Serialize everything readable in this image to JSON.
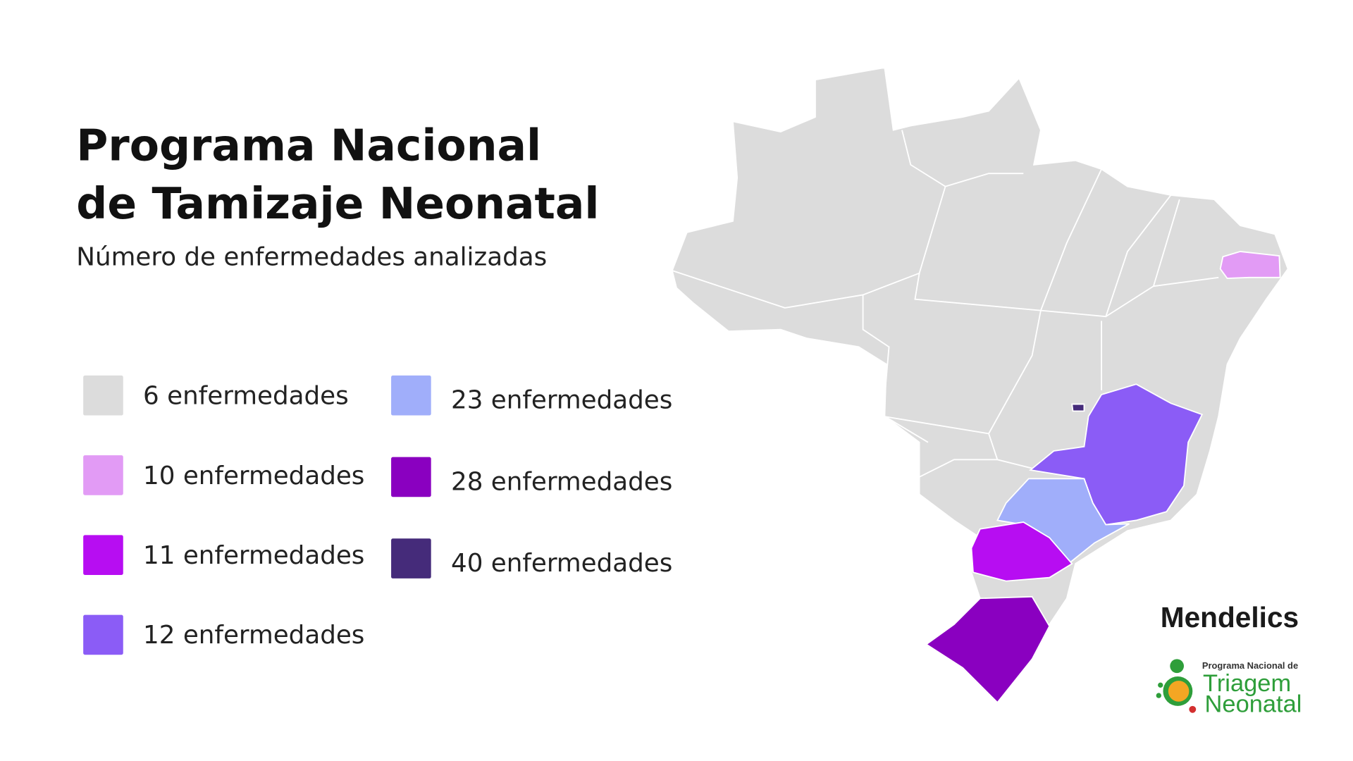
{
  "header": {
    "title_lines": [
      "Programa Nacional",
      "de Tamizaje Neonatal"
    ],
    "subtitle": "Número de enfermedades analizadas"
  },
  "legend": [
    {
      "label": "6 enfermedades",
      "color": "#dcdcdc"
    },
    {
      "label": "10 enfermedades",
      "color": "#e29bf5"
    },
    {
      "label": "11 enfermedades",
      "color": "#b70df2"
    },
    {
      "label": "12 enfermedades",
      "color": "#8b5cf6"
    },
    {
      "label": "23 enfermedades",
      "color": "#a0aefa"
    },
    {
      "label": "28 enfermedades",
      "color": "#8a00c0"
    },
    {
      "label": "40 enfermedades",
      "color": "#452b7a"
    }
  ],
  "logos": {
    "brand": "Mendelics",
    "program_line": "Programa Nacional de",
    "program_name": [
      "Triagem",
      "Neonatal"
    ]
  }
}
